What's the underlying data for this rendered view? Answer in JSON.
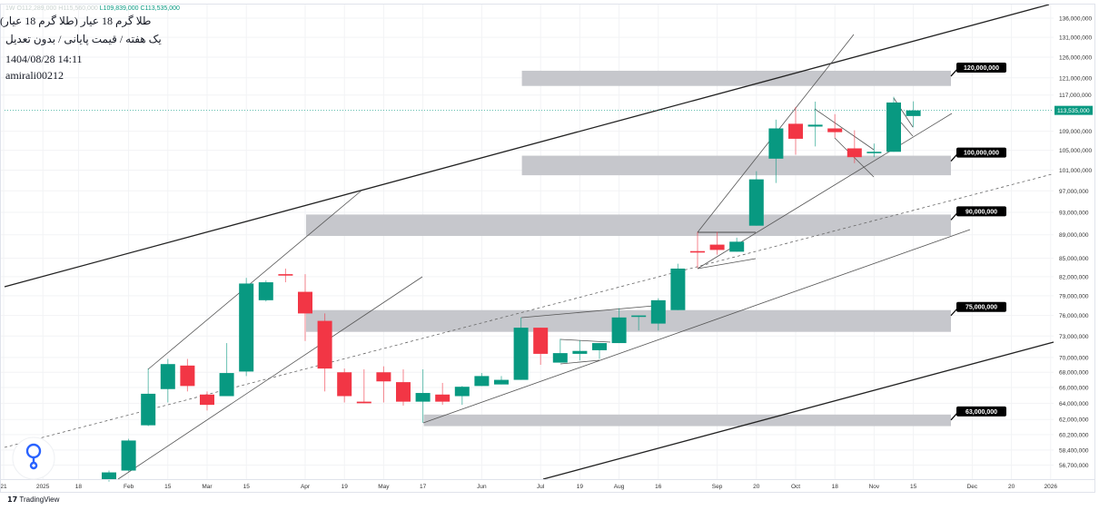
{
  "header": {
    "symbol_line": "طلا گرم 18 عیار (طلا گرم 18 عیار)",
    "settings_line": "یک هفته / قیمت پایانی / بدون تعدیل",
    "datetime": "1404/08/28 14:11",
    "author": "amirali00212",
    "ohlc": {
      "interval": "1W",
      "open": "O112,289,000",
      "high": "H115,560,000",
      "low": "L109,839,000",
      "close": "C113,535,000"
    }
  },
  "footer": {
    "brand": "TradingView",
    "brand_icon": "tradingview-logo-icon",
    "watermark_icon": "blue-drop-logo-icon"
  },
  "colors": {
    "up": "#089981",
    "down": "#f23645",
    "zone": "#c3c4c9",
    "label_bg": "#000000",
    "last_price_bg": "#089981"
  },
  "chart_data": {
    "type": "candlestick",
    "title": "",
    "scale": "log",
    "ylim": [
      54000000,
      139000000
    ],
    "grid": true,
    "y_ticks": [
      "136,000,000",
      "131,000,000",
      "126,000,000",
      "121,000,000",
      "117,000,000",
      "109,000,000",
      "105,000,000",
      "101,000,000",
      "97,000,000",
      "93,000,000",
      "89,000,000",
      "85,000,000",
      "82,000,000",
      "79,000,000",
      "76,000,000",
      "73,000,000",
      "70,000,000",
      "68,000,000",
      "66,000,000",
      "64,000,000",
      "62,000,000",
      "60,200,000",
      "58,400,000",
      "56,700,000"
    ],
    "y_tick_values": [
      136,
      131,
      126,
      121,
      117,
      109,
      105,
      101,
      97,
      93,
      89,
      85,
      82,
      79,
      76,
      73,
      70,
      68,
      66,
      64,
      62,
      60.2,
      58.4,
      56.7
    ],
    "last_price": {
      "value": 113.535,
      "label": "113,535,000"
    },
    "x_ticks": [
      {
        "label": "21",
        "date": "2024-12-21"
      },
      {
        "label": "2025",
        "date": "2025-01-04"
      },
      {
        "label": "18",
        "date": "2025-01-18"
      },
      {
        "label": "Feb",
        "date": "2025-02-01"
      },
      {
        "label": "15",
        "date": "2025-02-15"
      },
      {
        "label": "Mar",
        "date": "2025-03-01"
      },
      {
        "label": "15",
        "date": "2025-03-15"
      },
      {
        "label": "Apr",
        "date": "2025-04-05"
      },
      {
        "label": "19",
        "date": "2025-04-19"
      },
      {
        "label": "May",
        "date": "2025-05-03"
      },
      {
        "label": "17",
        "date": "2025-05-17"
      },
      {
        "label": "Jun",
        "date": "2025-06-07"
      },
      {
        "label": "Jul",
        "date": "2025-07-05"
      },
      {
        "label": "19",
        "date": "2025-07-19"
      },
      {
        "label": "Aug",
        "date": "2025-08-02"
      },
      {
        "label": "16",
        "date": "2025-08-16"
      },
      {
        "label": "Sep",
        "date": "2025-09-06"
      },
      {
        "label": "20",
        "date": "2025-09-20"
      },
      {
        "label": "Oct",
        "date": "2025-10-04"
      },
      {
        "label": "18",
        "date": "2025-10-18"
      },
      {
        "label": "Nov",
        "date": "2025-11-01"
      },
      {
        "label": "15",
        "date": "2025-11-15"
      },
      {
        "label": "Dec",
        "date": "2025-12-06"
      },
      {
        "label": "20",
        "date": "2025-12-20"
      },
      {
        "label": "2026",
        "date": "2026-01-03"
      }
    ],
    "unit_note": "values in millions",
    "candles": [
      [
        "2025-01-25",
        55.1,
        56.1,
        54.9,
        55.9
      ],
      [
        "2025-02-01",
        56.1,
        59.7,
        56.0,
        59.5
      ],
      [
        "2025-02-08",
        61.3,
        68.5,
        61.2,
        65.2
      ],
      [
        "2025-02-15",
        65.8,
        69.8,
        64.1,
        69.1
      ],
      [
        "2025-02-22",
        68.9,
        69.8,
        65.5,
        66.2
      ],
      [
        "2025-03-01",
        65.1,
        65.5,
        63.1,
        63.8
      ],
      [
        "2025-03-08",
        64.9,
        72.0,
        64.9,
        67.9
      ],
      [
        "2025-03-15",
        68.1,
        81.8,
        67.5,
        80.9
      ],
      [
        "2025-03-22",
        78.3,
        81.4,
        78.1,
        81.1
      ],
      [
        "2025-03-29",
        82.4,
        83.3,
        81.1,
        82.3
      ],
      [
        "2025-04-05",
        79.6,
        82.4,
        72.3,
        76.3
      ],
      [
        "2025-04-12",
        75.2,
        76.3,
        65.5,
        68.5
      ],
      [
        "2025-04-19",
        68.0,
        68.5,
        64.1,
        64.9
      ],
      [
        "2025-04-26",
        64.2,
        68.4,
        64.0,
        64.0
      ],
      [
        "2025-05-03",
        68.0,
        68.8,
        64.1,
        66.8
      ],
      [
        "2025-05-10",
        66.7,
        68.4,
        63.7,
        64.2
      ],
      [
        "2025-05-17",
        64.2,
        68.4,
        61.6,
        65.3
      ],
      [
        "2025-05-24",
        65.1,
        66.6,
        63.8,
        64.2
      ],
      [
        "2025-05-31",
        64.9,
        66.2,
        63.8,
        66.1
      ],
      [
        "2025-06-07",
        66.2,
        67.9,
        66.2,
        67.5
      ],
      [
        "2025-06-14",
        66.4,
        67.5,
        66.4,
        67.0
      ],
      [
        "2025-06-28",
        67.0,
        75.7,
        67.0,
        74.2
      ],
      [
        "2025-07-05",
        74.2,
        74.2,
        69.0,
        70.5
      ],
      [
        "2025-07-12",
        69.3,
        72.6,
        69.3,
        70.6
      ],
      [
        "2025-07-19",
        70.5,
        72.4,
        69.6,
        70.9
      ],
      [
        "2025-07-26",
        71.0,
        72.0,
        69.8,
        72.0
      ],
      [
        "2025-08-02",
        72.0,
        77.1,
        72.0,
        75.7
      ],
      [
        "2025-08-09",
        75.9,
        76.0,
        73.8,
        76.0
      ],
      [
        "2025-08-16",
        74.8,
        78.6,
        73.8,
        78.3
      ],
      [
        "2025-08-23",
        76.8,
        84.1,
        76.8,
        83.3
      ],
      [
        "2025-08-30",
        86.2,
        89.5,
        83.4,
        86.1
      ],
      [
        "2025-09-06",
        87.3,
        89.5,
        85.6,
        86.4
      ],
      [
        "2025-09-13",
        86.1,
        88.5,
        86.1,
        87.8
      ],
      [
        "2025-09-20",
        90.6,
        100.8,
        90.6,
        99.2
      ],
      [
        "2025-09-27",
        103.3,
        111.5,
        98.5,
        109.6
      ],
      [
        "2025-10-04",
        110.6,
        114.3,
        104.1,
        107.4
      ],
      [
        "2025-10-11",
        110.0,
        115.5,
        105.8,
        110.4
      ],
      [
        "2025-10-18",
        109.6,
        112.7,
        107.6,
        108.8
      ],
      [
        "2025-10-25",
        105.4,
        109.2,
        102.4,
        103.6
      ],
      [
        "2025-11-01",
        104.5,
        106.4,
        103.6,
        104.7
      ],
      [
        "2025-11-08",
        104.7,
        116.6,
        104.7,
        115.3
      ],
      [
        "2025-11-15",
        112.289,
        115.56,
        109.839,
        113.535
      ]
    ],
    "zones": [
      {
        "label": "120,000,000",
        "top": 122.7,
        "bottom": 119.1,
        "start": "2025-06-28"
      },
      {
        "label": "100,000,000",
        "top": 103.9,
        "bottom": 100.0,
        "start": "2025-06-28"
      },
      {
        "label": "90,000,000",
        "top": 92.6,
        "bottom": 88.8,
        "start": "2025-04-05"
      },
      {
        "label": "75,000,000",
        "top": 76.8,
        "bottom": 73.6,
        "start": "2025-04-05"
      },
      {
        "label": "63,000,000",
        "top": 62.6,
        "bottom": 61.2,
        "start": "2025-05-17"
      }
    ]
  }
}
